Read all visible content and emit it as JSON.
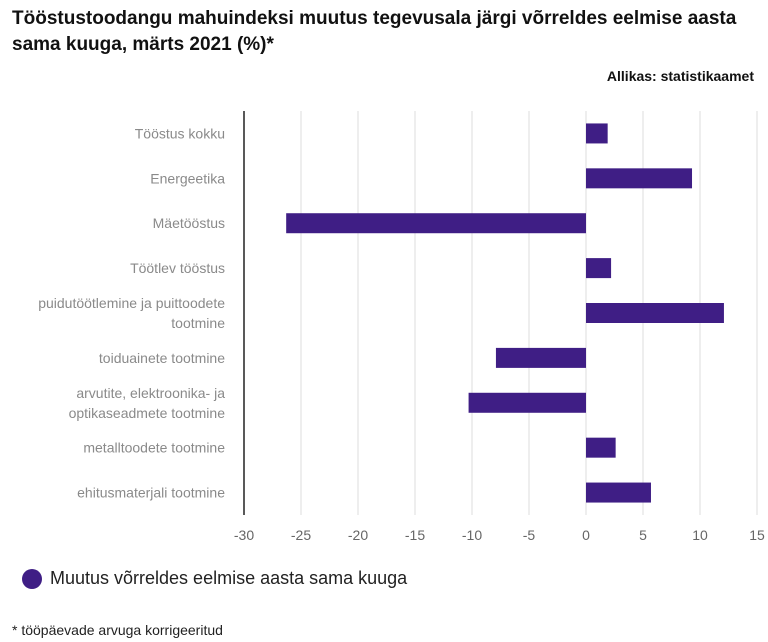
{
  "title": "Tööstustoodangu mahuindeksi muutus tegevusala järgi võrreldes eelmise aasta sama kuuga, märts 2021 (%)*",
  "source": "Allikas: statistikaamet",
  "footnote": "* tööpäevade arvuga korrigeeritud",
  "colors": {
    "bar": "#3f1e85",
    "grid": "#dddddd",
    "axis": "#222222",
    "label": "#8a8a8a"
  },
  "chart_data": {
    "type": "bar",
    "orientation": "horizontal",
    "categories": [
      "Tööstus kokku",
      "Energeetika",
      "Mäetööstus",
      "Töötlev tööstus",
      "puidutöötlemine ja puittoodete tootmine",
      "toiduainete tootmine",
      "arvutite, elektroonika- ja optikaseadmete tootmine",
      "metalltoodete tootmine",
      "ehitusmaterjali tootmine"
    ],
    "category_lines": [
      [
        "Tööstus kokku"
      ],
      [
        "Energeetika"
      ],
      [
        "Mäetööstus"
      ],
      [
        "Töötlev tööstus"
      ],
      [
        "puidutöötlemine ja puittoodete",
        "tootmine"
      ],
      [
        "toiduainete tootmine"
      ],
      [
        "arvutite, elektroonika- ja",
        "optikaseadmete tootmine"
      ],
      [
        "metalltoodete tootmine"
      ],
      [
        "ehitusmaterjali tootmine"
      ]
    ],
    "series": [
      {
        "name": "Muutus võrreldes eelmise aasta sama kuuga",
        "values": [
          1.9,
          9.3,
          -26.3,
          2.2,
          12.1,
          -7.9,
          -10.3,
          2.6,
          5.7
        ]
      }
    ],
    "xlim": [
      -30,
      15
    ],
    "xticks": [
      -30,
      -25,
      -20,
      -15,
      -10,
      -5,
      0,
      5,
      10,
      15
    ],
    "grid": true,
    "legend": "bottom-left"
  }
}
